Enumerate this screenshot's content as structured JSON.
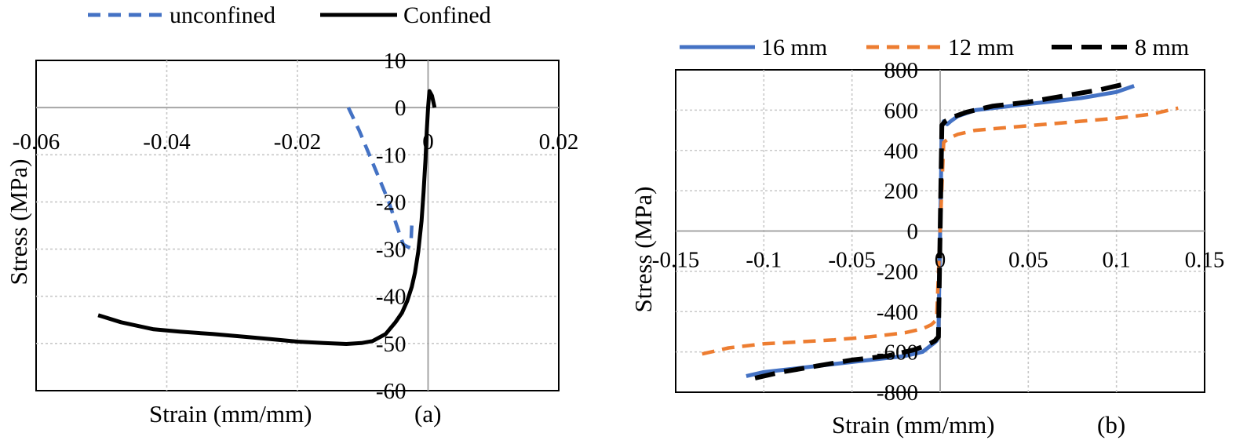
{
  "chart_data": [
    {
      "type": "line",
      "panel_label": "(a)",
      "xlabel": "Strain (mm/mm)",
      "ylabel": "Stress (MPa)",
      "xlim": [
        -0.06,
        0.02
      ],
      "ylim": [
        -60,
        10
      ],
      "xticks": [
        -0.06,
        -0.04,
        -0.02,
        0,
        0.02
      ],
      "yticks": [
        10,
        0,
        -10,
        -20,
        -30,
        -40,
        -50,
        -60
      ],
      "xtick_labels": [
        "-0.06",
        "-0.04",
        "-0.02",
        "0",
        "0.02"
      ],
      "ytick_labels": [
        "10",
        "0",
        "-10",
        "-20",
        "-30",
        "-40",
        "-50",
        "-60"
      ],
      "grid": true,
      "legend_position": "top",
      "series": [
        {
          "name": "unconfined",
          "color": "#4472C4",
          "dash": "dashed",
          "x": [
            -0.0122,
            -0.0105,
            -0.009,
            -0.0075,
            -0.006,
            -0.0048,
            -0.0038,
            -0.003,
            -0.0026,
            -0.0025
          ],
          "y": [
            0,
            -5,
            -10,
            -15,
            -20,
            -25,
            -29,
            -29.6,
            -28,
            -25
          ]
        },
        {
          "name": "Confined",
          "color": "#000000",
          "dash": "solid",
          "x": [
            -0.0505,
            -0.047,
            -0.042,
            -0.038,
            -0.033,
            -0.028,
            -0.024,
            -0.02,
            -0.016,
            -0.0125,
            -0.0102,
            -0.0085,
            -0.0065,
            -0.005,
            -0.004,
            -0.0032,
            -0.0025,
            -0.002,
            -0.0015,
            -0.001,
            -0.0007,
            -0.0004,
            -0.0002,
            0,
            0.0002,
            0.0006,
            0.001
          ],
          "y": [
            -44,
            -45.5,
            -47,
            -47.5,
            -48,
            -48.6,
            -49.1,
            -49.6,
            -49.9,
            -50.1,
            -49.9,
            -49.5,
            -48,
            -45.5,
            -43.5,
            -41,
            -38,
            -35,
            -30.5,
            -24,
            -18,
            -11,
            -5,
            0,
            3.5,
            2.5,
            0
          ]
        }
      ]
    },
    {
      "type": "line",
      "panel_label": "(b)",
      "xlabel": "Strain (mm/mm)",
      "ylabel": "Stress (MPa)",
      "xlim": [
        -0.15,
        0.15
      ],
      "ylim": [
        -800,
        800
      ],
      "xticks": [
        -0.15,
        -0.1,
        -0.05,
        0,
        0.05,
        0.1,
        0.15
      ],
      "yticks": [
        800,
        600,
        400,
        200,
        0,
        -200,
        -400,
        -600,
        -800
      ],
      "xtick_labels": [
        "-0.15",
        "-0.1",
        "-0.05",
        "0",
        "0.05",
        "0.1",
        "0.15"
      ],
      "ytick_labels": [
        "800",
        "600",
        "400",
        "200",
        "0",
        "-200",
        "-400",
        "-600",
        "-800"
      ],
      "grid": true,
      "legend_position": "top",
      "series": [
        {
          "name": "16 mm",
          "color": "#4472C4",
          "dash": "solid",
          "x": [
            -0.11,
            -0.1,
            -0.08,
            -0.06,
            -0.04,
            -0.02,
            -0.01,
            -0.004,
            -0.002,
            -0.001,
            0,
            0.001,
            0.002,
            0.004,
            0.006,
            0.01,
            0.02,
            0.04,
            0.06,
            0.08,
            0.1,
            0.11
          ],
          "y": [
            -720,
            -700,
            -680,
            -660,
            -640,
            -620,
            -600,
            -560,
            -545,
            -520,
            0,
            520,
            545,
            530,
            545,
            570,
            600,
            620,
            640,
            660,
            690,
            720
          ]
        },
        {
          "name": "12 mm",
          "color": "#ED7D31",
          "dash": "dashed",
          "x": [
            -0.135,
            -0.12,
            -0.1,
            -0.08,
            -0.06,
            -0.04,
            -0.02,
            -0.01,
            -0.005,
            -0.002,
            0,
            0.002,
            0.005,
            0.01,
            0.02,
            0.04,
            0.06,
            0.08,
            0.1,
            0.12,
            0.135
          ],
          "y": [
            -610,
            -580,
            -560,
            -550,
            -540,
            -525,
            -505,
            -485,
            -465,
            -440,
            0,
            440,
            460,
            480,
            500,
            515,
            530,
            545,
            560,
            580,
            610
          ]
        },
        {
          "name": "8 mm",
          "color": "#000000",
          "dash": "longdash",
          "x": [
            -0.105,
            -0.09,
            -0.07,
            -0.05,
            -0.03,
            -0.015,
            -0.007,
            -0.003,
            -0.001,
            0,
            0.001,
            0.003,
            0.007,
            0.015,
            0.03,
            0.05,
            0.07,
            0.09,
            0.105
          ],
          "y": [
            -730,
            -700,
            -670,
            -640,
            -620,
            -590,
            -565,
            -545,
            -525,
            0,
            525,
            545,
            565,
            590,
            620,
            640,
            670,
            700,
            730
          ]
        }
      ]
    }
  ]
}
